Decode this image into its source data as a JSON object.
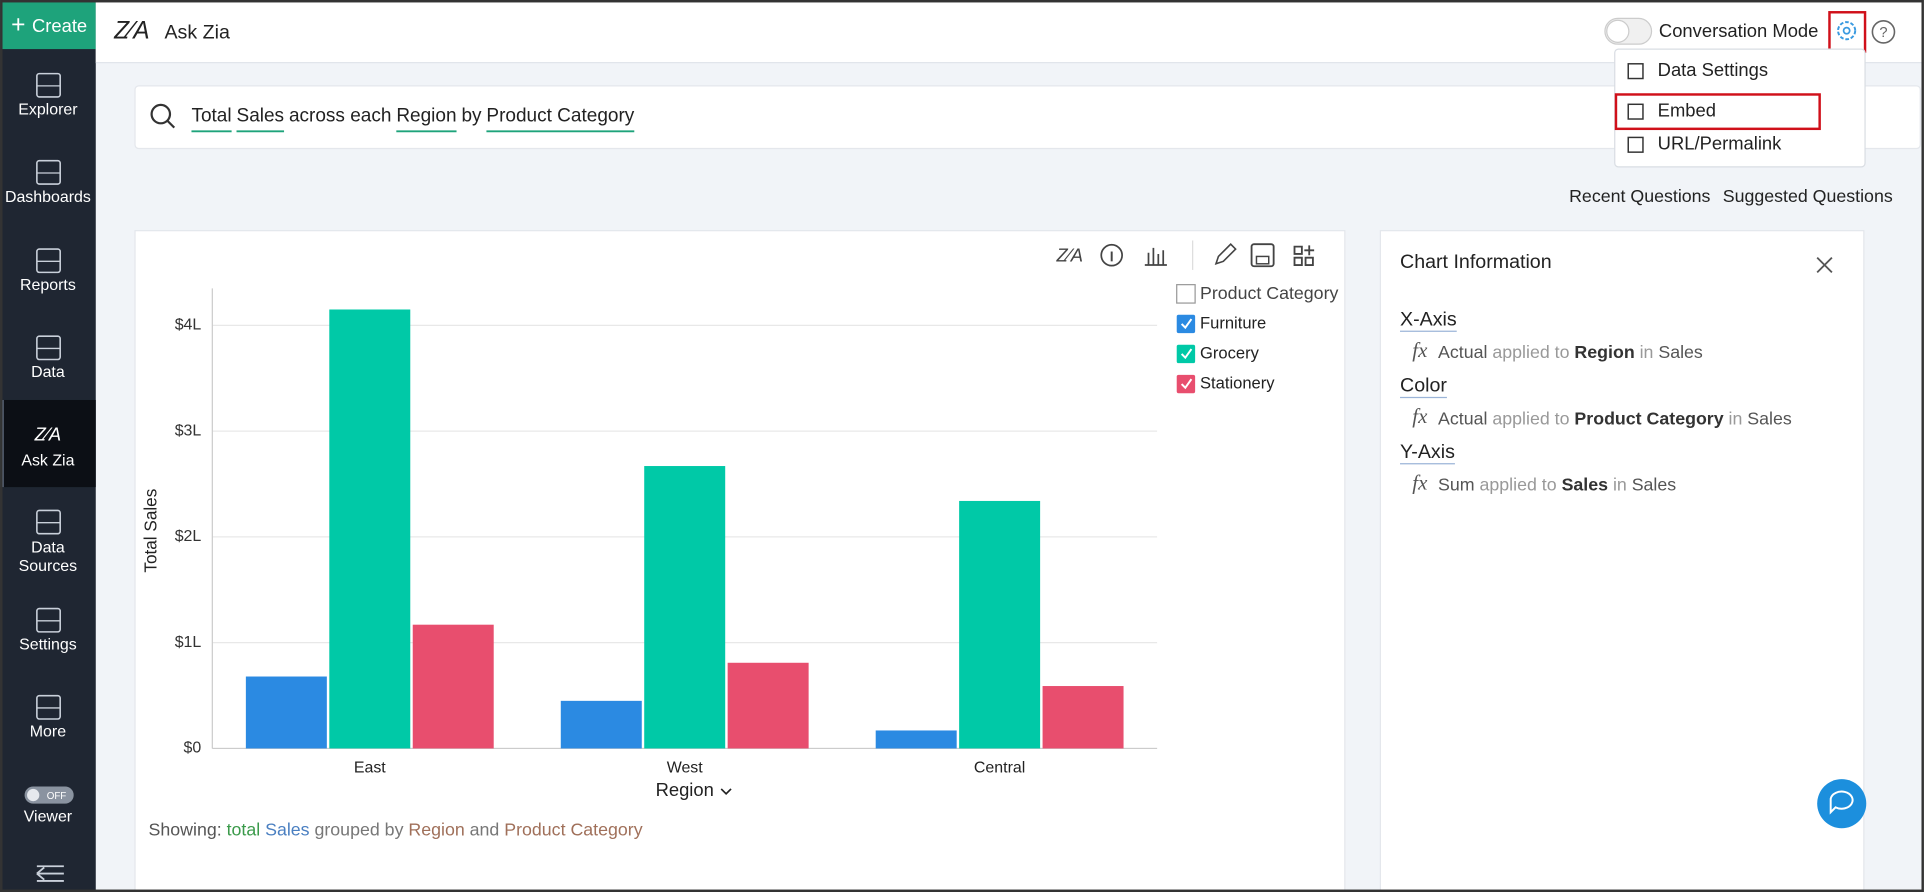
{
  "sidebar": {
    "create": "Create",
    "items": [
      "Explorer",
      "Dashboards",
      "Reports",
      "Data",
      "Ask Zia",
      [
        "Data",
        "Sources"
      ],
      "Settings",
      "More",
      "Viewer"
    ],
    "toggle": "OFF"
  },
  "header": {
    "title": "Ask Zia",
    "conversation_mode": "Conversation Mode"
  },
  "menu": [
    "Data Settings",
    "Embed",
    "URL/Permalink"
  ],
  "search": [
    "Total",
    "Sales",
    "across each",
    "Region",
    "by",
    "Product Category"
  ],
  "links": [
    "Recent Questions",
    "Suggested Questions"
  ],
  "chart_data": {
    "type": "bar",
    "categories": [
      "East",
      "West",
      "Central"
    ],
    "x_label": "Region",
    "y_label": "Total Sales",
    "legend_title": "Product Category",
    "series": [
      {
        "name": "Furniture",
        "color": "#2b8ae2",
        "values": [
          68000,
          45000,
          17000
        ]
      },
      {
        "name": "Grocery",
        "color": "#00c9a7",
        "values": [
          415000,
          267000,
          234000
        ]
      },
      {
        "name": "Stationery",
        "color": "#e84e6e",
        "values": [
          117000,
          81000,
          59000
        ]
      }
    ],
    "ylim": [
      0,
      435000
    ],
    "yticks": [
      {
        "value": 0,
        "label": "$0"
      },
      {
        "value": 100000,
        "label": "$1L"
      },
      {
        "value": 200000,
        "label": "$2L"
      },
      {
        "value": 300000,
        "label": "$3L"
      },
      {
        "value": 400000,
        "label": "$4L"
      }
    ],
    "grid": true
  },
  "chart_info": {
    "title": "Chart Information",
    "sections": [
      {
        "name": "X-Axis",
        "fx": "fx",
        "parts": [
          "Actual",
          "applied to",
          "Region",
          "in",
          "Sales"
        ]
      },
      {
        "name": "Color",
        "fx": "fx",
        "parts": [
          "Actual",
          "applied to",
          "Product Category",
          "in",
          "Sales"
        ]
      },
      {
        "name": "Y-Axis",
        "fx": "fx",
        "parts": [
          "Sum",
          "applied to",
          "Sales",
          "in",
          "Sales"
        ]
      }
    ]
  },
  "showing": [
    "Showing:",
    "total",
    "Sales",
    "grouped by",
    "Region",
    "and",
    "Product Category"
  ]
}
